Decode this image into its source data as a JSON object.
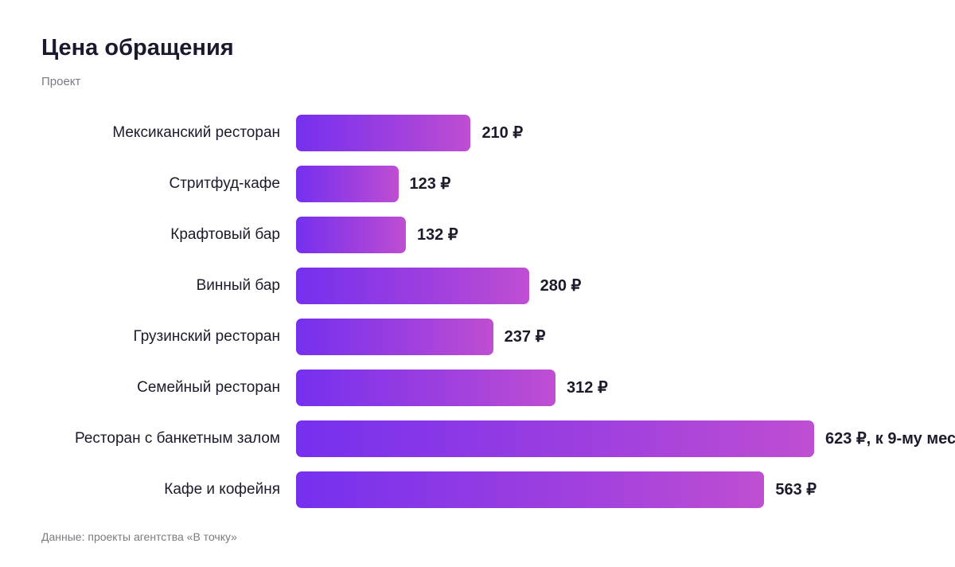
{
  "chart_data": {
    "type": "bar",
    "orientation": "horizontal",
    "title": "Цена обращения",
    "subtitle": "Проект",
    "source": "Данные: проекты агентства «В точку»",
    "categories": [
      "Мексиканский ресторан",
      "Стритфуд-кафе",
      "Крафтовый бар",
      "Винный бар",
      "Грузинский ресторан",
      "Семейный ресторан",
      "Ресторан с банкетным залом",
      "Кафе и кофейня"
    ],
    "values": [
      210,
      123,
      132,
      280,
      237,
      312,
      623,
      563
    ],
    "value_labels": [
      "210 ₽",
      "123 ₽",
      "132 ₽",
      "280 ₽",
      "237 ₽",
      "312 ₽",
      "623 ₽, к 9-му мес",
      "563 ₽"
    ],
    "unit": "₽",
    "grid": false,
    "legend": "none",
    "colors": {
      "bar_start": "#7530ee",
      "bar_end": "#bf4ed2",
      "text": "#1b1b2b",
      "muted": "#7a7a85"
    }
  }
}
